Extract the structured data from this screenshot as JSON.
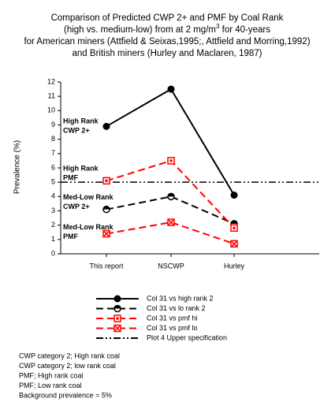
{
  "chart_data": {
    "type": "line",
    "title_lines": [
      "Comparison of Predicted CWP 2+ and PMF by Coal Rank",
      {
        "before": "(high vs. medium-low) from at 2 mg/m",
        "sup": "3",
        "after": " for 40-years"
      },
      "for American miners (Attfield & Seixas,1995;, Attfield and Morring,1992)",
      "and British miners (Hurley and Maclaren, 1987)"
    ],
    "y_label": "Prevalence (%)",
    "categories": [
      "This report",
      "NSCWP",
      "Hurley"
    ],
    "ylim": [
      0,
      12
    ],
    "yticks": [
      0,
      1,
      2,
      3,
      4,
      5,
      6,
      7,
      8,
      9,
      10,
      11,
      12
    ],
    "series": [
      {
        "name": "Col 31 vs high rank 2",
        "color": "#000000",
        "dash": "solid",
        "marker": "filled-circle",
        "values": [
          8.9,
          11.5,
          4.1
        ]
      },
      {
        "name": "Col 31 vs lo rank 2",
        "color": "#000000",
        "dash": "dashed",
        "marker": "half-circle",
        "values": [
          3.1,
          4.0,
          2.1
        ]
      },
      {
        "name": "Col 31 vs pmf hi",
        "color": "#ff0000",
        "dash": "dashed",
        "marker": "dot-square",
        "values": [
          5.1,
          6.5,
          1.8
        ]
      },
      {
        "name": "Col 31 vs pmf lo",
        "color": "#ff0000",
        "dash": "dashed",
        "marker": "x-square",
        "values": [
          1.4,
          2.2,
          0.7
        ]
      }
    ],
    "reference_line": {
      "name": "Plot 4 Upper specification",
      "value": 5,
      "color": "#000000"
    },
    "annotations": [
      {
        "lines": [
          "High Rank",
          "CWP 2+"
        ],
        "color": "#000000",
        "y": 8.9
      },
      {
        "lines": [
          "High Rank",
          "PMF"
        ],
        "color": "#ff0000",
        "y": 5.6
      },
      {
        "lines": [
          "Med-Low Rank",
          "CWP 2+"
        ],
        "color": "#000000",
        "y": 3.6
      },
      {
        "lines": [
          "Med-Low Rank",
          "PMF"
        ],
        "color": "#ff0000",
        "y": 1.5
      }
    ],
    "notes": [
      "CWP category 2; High rank coal",
      "CWP category 2; low rank coal",
      "PMF; High rank coal",
      "PMF; Low rank coal",
      "Background prevalence = 5%"
    ]
  }
}
